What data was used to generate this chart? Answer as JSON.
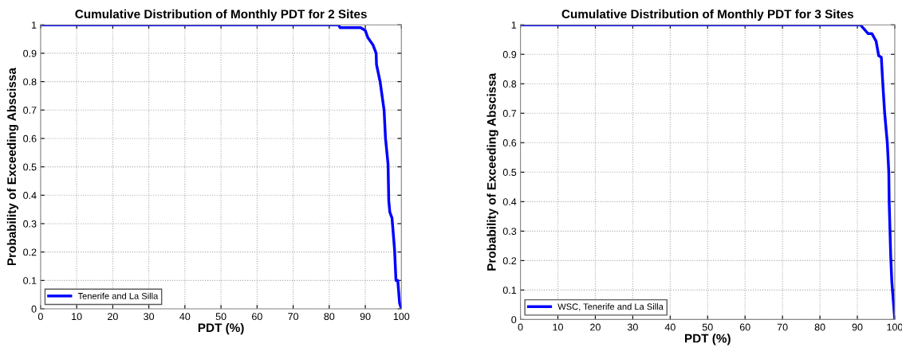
{
  "chart_data": [
    {
      "type": "line",
      "title": "Cumulative Distribution of Monthly PDT for 2 Sites",
      "xlabel": "PDT (%)",
      "ylabel": "Probability of Exceeding Abscissa",
      "xlim": [
        0,
        100
      ],
      "ylim": [
        0,
        1
      ],
      "xticks": [
        0,
        10,
        20,
        30,
        40,
        50,
        60,
        70,
        80,
        90,
        100
      ],
      "yticks": [
        0,
        0.1,
        0.2,
        0.3,
        0.4,
        0.5,
        0.6,
        0.7,
        0.8,
        0.9,
        1
      ],
      "grid": true,
      "legend": "bottom left",
      "line_style": "solid",
      "marker": "none",
      "series": [
        {
          "name": "Tenerife and La Silla",
          "color": "#0000ff",
          "x": [
            0,
            82.6,
            83,
            88.7,
            90,
            90.7,
            92.1,
            93,
            93.1,
            94.1,
            95.2,
            95.6,
            96.3,
            96.5,
            96.8,
            97.4,
            98.1,
            98.5,
            99,
            99.5,
            100
          ],
          "values": [
            1,
            1,
            0.99,
            0.99,
            0.98,
            0.955,
            0.93,
            0.9,
            0.86,
            0.8,
            0.7,
            0.6,
            0.51,
            0.38,
            0.34,
            0.32,
            0.21,
            0.1,
            0.1,
            0.02,
            0
          ]
        }
      ]
    },
    {
      "type": "line",
      "title": "Cumulative Distribution of Monthly PDT for 3 Sites",
      "xlabel": "PDT (%)",
      "ylabel": "Probability of Exceeding Abscissa",
      "xlim": [
        0,
        100
      ],
      "ylim": [
        0,
        1
      ],
      "xticks": [
        0,
        10,
        20,
        30,
        40,
        50,
        60,
        70,
        80,
        90,
        100
      ],
      "yticks": [
        0,
        0.1,
        0.2,
        0.3,
        0.4,
        0.5,
        0.6,
        0.7,
        0.8,
        0.9,
        1
      ],
      "grid": true,
      "legend": "bottom left",
      "line_style": "solid",
      "marker": "none",
      "series": [
        {
          "name": "WSC, Tenerife and La Silla",
          "color": "#0000ff",
          "x": [
            0,
            90.8,
            92.9,
            93.9,
            95,
            95.7,
            96.4,
            96.8,
            97.3,
            98,
            98.4,
            98.5,
            98.9,
            99.2,
            100
          ],
          "values": [
            1,
            1,
            0.97,
            0.97,
            0.945,
            0.895,
            0.89,
            0.8,
            0.7,
            0.6,
            0.5,
            0.4,
            0.22,
            0.13,
            0
          ]
        }
      ]
    }
  ]
}
